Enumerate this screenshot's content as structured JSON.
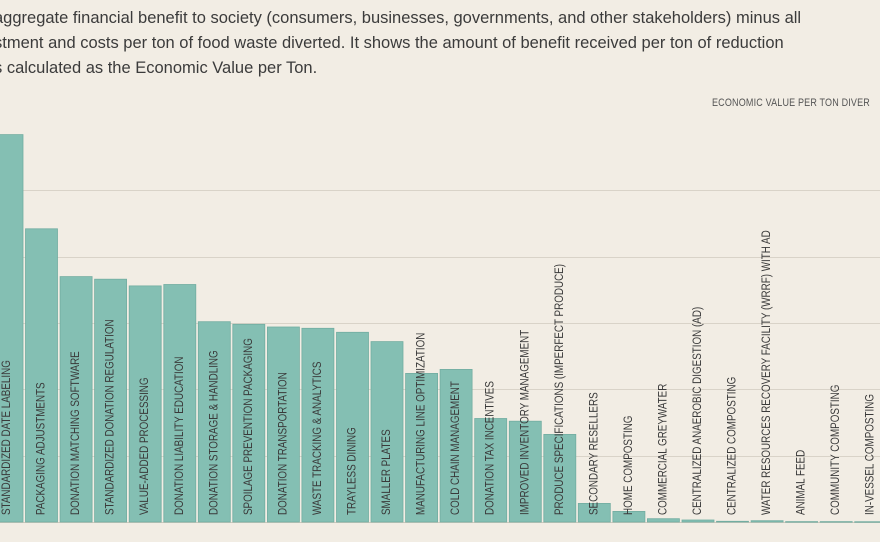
{
  "intro": {
    "line1": "aggregate financial benefit to society (consumers, businesses, governments, and other stakeholders) minus all",
    "line2": "stment and costs per ton of food waste diverted. It shows the amount of benefit received per ton of reduction",
    "line3": "s calculated as the Economic Value per Ton."
  },
  "colors": {
    "bar": "#84bfb3",
    "bar_edge": "#72ada1",
    "grid": "#d9d3c8",
    "background": "#f2ede4"
  },
  "chart_data": {
    "type": "bar",
    "title": "",
    "ylabel": "ECONOMIC VALUE PER TON DIVER",
    "xlabel": "",
    "ylim": [
      0,
      3000
    ],
    "gridlines": [
      0,
      500,
      1000,
      1500,
      2000,
      2500
    ],
    "grid": true,
    "categories": [
      "STANDARDIZED DATE LABELING",
      "PACKAGING ADJUSTMENTS",
      "DONATION MATCHING SOFTWARE",
      "STANDARDIZED DONATION REGULATION",
      "VALUE-ADDED PROCESSING",
      "DONATION LIABILITY EDUCATION",
      "DONATION STORAGE & HANDLING",
      "SPOILAGE PREVENTION PACKAGING",
      "DONATION TRANSPORTATION",
      "WASTE TRACKING & ANALYTICS",
      "TRAYLESS DINING",
      "SMALLER PLATES",
      "MANUFACTURING LINE OPTIMIZATION",
      "COLD CHAIN MANAGEMENT",
      "DONATION TAX INCENTIVES",
      "IMPROVED INVENTORY MANAGEMENT",
      "PRODUCE SPECIFICATIONS (IMPERFECT PRODUCE)",
      "SECONDARY RESELLERS",
      "HOME COMPOSTING",
      "COMMERCIAL GREYWATER",
      "CENTRALIZED ANAEROBIC DIGESTION (AD)",
      "CENTRALIZED COMPOSTING",
      "WATER RESOURCES RECOVERY FACILITY (WRRF) WITH AD",
      "ANIMAL FEED",
      "COMMUNITY COMPOSTING",
      "IN-VESSEL COMPOSTING"
    ],
    "values": [
      2920,
      2210,
      1850,
      1830,
      1780,
      1790,
      1510,
      1490,
      1470,
      1460,
      1430,
      1360,
      1120,
      1150,
      780,
      760,
      660,
      140,
      80,
      25,
      15,
      5,
      10,
      3,
      3,
      2
    ]
  }
}
